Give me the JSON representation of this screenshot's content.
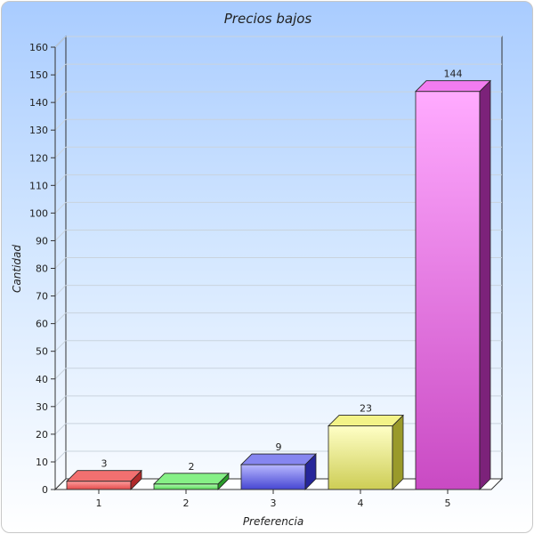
{
  "chart_data": {
    "type": "bar",
    "title": "Precios bajos",
    "xlabel": "Preferencia",
    "ylabel": "Cantidad",
    "categories": [
      "1",
      "2",
      "3",
      "4",
      "5"
    ],
    "values": [
      3,
      2,
      9,
      23,
      144
    ],
    "ylim": [
      0,
      160
    ],
    "yticks": [
      0,
      10,
      20,
      30,
      40,
      50,
      60,
      70,
      80,
      90,
      100,
      110,
      120,
      130,
      140,
      150,
      160
    ],
    "grid": true,
    "bar_colors": [
      {
        "light": "#ff9e9e",
        "dark": "#e24a4a",
        "top": "#f27070",
        "side": "#b02a2a"
      },
      {
        "light": "#b6ffb6",
        "dark": "#54d654",
        "top": "#86f086",
        "side": "#2a9c2a"
      },
      {
        "light": "#b8b8ff",
        "dark": "#4646d2",
        "top": "#8686f0",
        "side": "#26269a"
      },
      {
        "light": "#ffffc6",
        "dark": "#cdcd55",
        "top": "#f3f388",
        "side": "#9a9a2a"
      },
      {
        "light": "#ffabff",
        "dark": "#c94ac3",
        "top": "#f27cf0",
        "side": "#7c227a"
      }
    ]
  }
}
